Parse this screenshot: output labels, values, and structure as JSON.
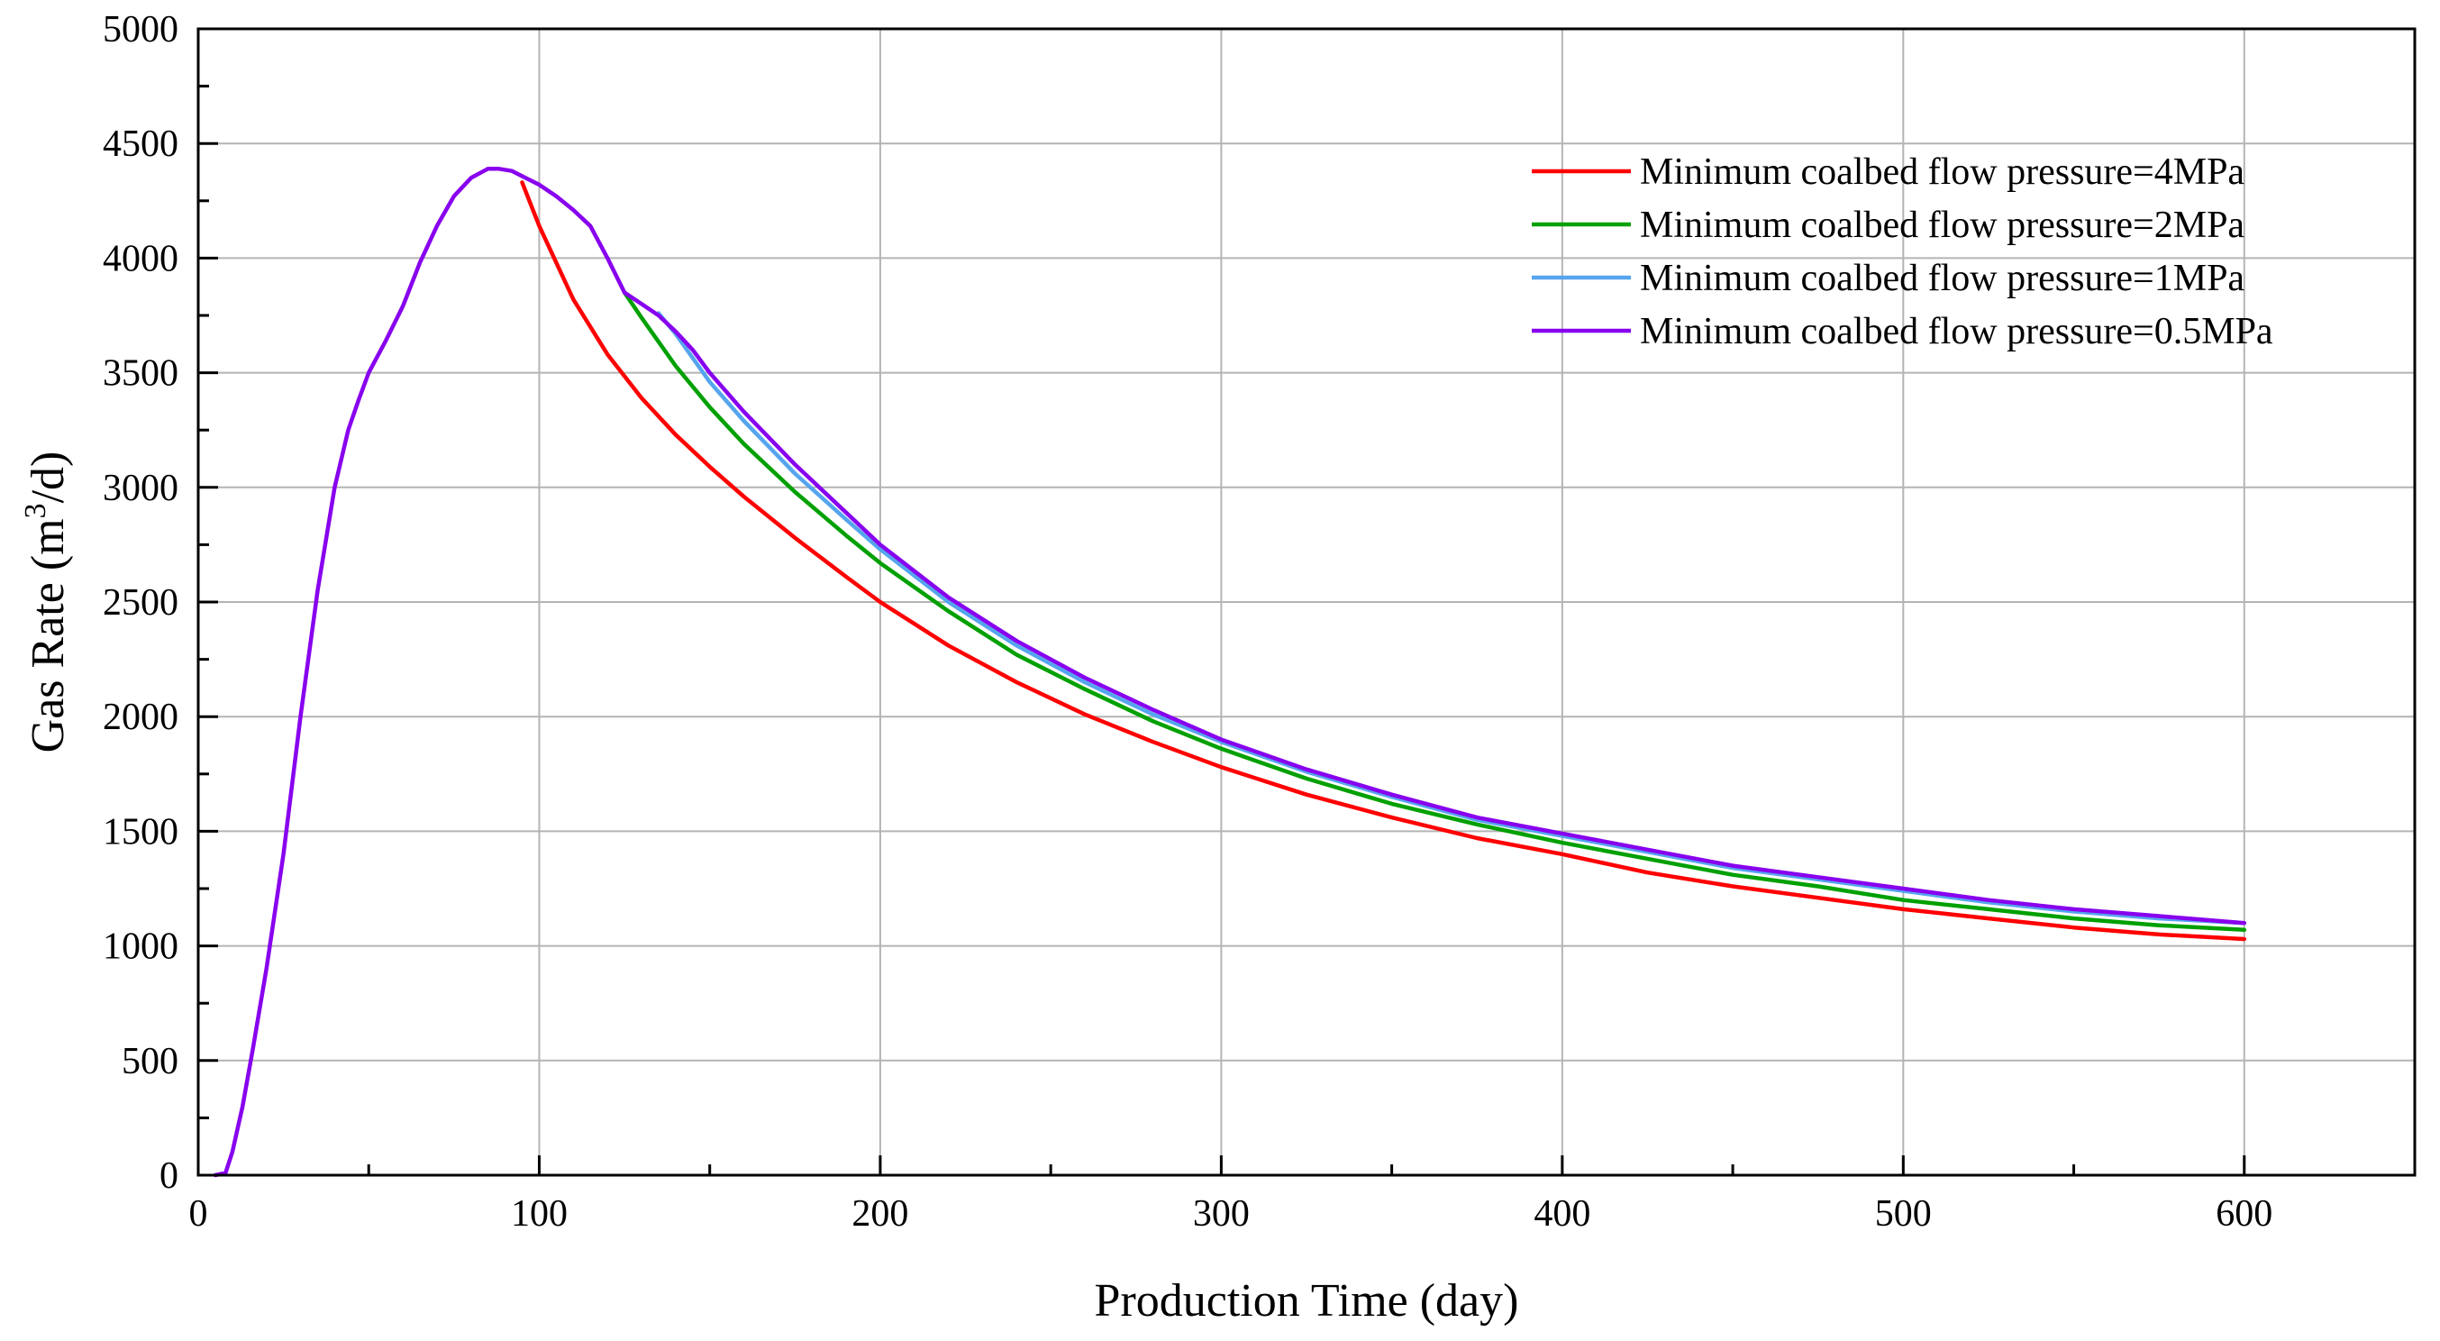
{
  "chart_data": {
    "type": "line",
    "title": "",
    "xlabel": "Production Time (day)",
    "ylabel": {
      "main": "Gas Rate (m",
      "sup": "3",
      "tail": "/d)"
    },
    "xlim": [
      0,
      650
    ],
    "ylim": [
      0,
      5000
    ],
    "xticks": [
      0,
      100,
      200,
      300,
      400,
      500,
      600
    ],
    "yticks": [
      0,
      500,
      1000,
      1500,
      2000,
      2500,
      3000,
      3500,
      4000,
      4500,
      5000
    ],
    "grid": true,
    "legend_position": "top-right",
    "series": [
      {
        "name": "Minimum coalbed flow pressure=4MPa",
        "color": "#ff0000",
        "x": [
          95,
          100,
          110,
          120,
          130,
          140,
          150,
          160,
          175,
          190,
          200,
          220,
          240,
          260,
          280,
          300,
          325,
          350,
          375,
          400,
          425,
          450,
          475,
          500,
          525,
          550,
          575,
          600
        ],
        "y": [
          4330,
          4140,
          3820,
          3580,
          3390,
          3230,
          3090,
          2960,
          2780,
          2610,
          2500,
          2310,
          2150,
          2010,
          1890,
          1780,
          1660,
          1560,
          1470,
          1400,
          1320,
          1260,
          1210,
          1160,
          1120,
          1080,
          1050,
          1030
        ]
      },
      {
        "name": "Minimum coalbed flow pressure=2MPa",
        "color": "#00a000",
        "x": [
          125,
          130,
          140,
          150,
          160,
          175,
          190,
          200,
          220,
          240,
          260,
          280,
          300,
          325,
          350,
          375,
          400,
          425,
          450,
          475,
          500,
          525,
          550,
          575,
          600
        ],
        "y": [
          3850,
          3740,
          3530,
          3350,
          3190,
          2980,
          2790,
          2670,
          2460,
          2270,
          2120,
          1980,
          1860,
          1730,
          1620,
          1530,
          1450,
          1380,
          1310,
          1260,
          1200,
          1160,
          1120,
          1090,
          1070
        ]
      },
      {
        "name": "Minimum coalbed flow pressure=1MPa",
        "color": "#55a5ee",
        "x": [
          135,
          140,
          150,
          160,
          175,
          190,
          200,
          220,
          240,
          260,
          280,
          300,
          325,
          350,
          375,
          400,
          425,
          450,
          475,
          500,
          525,
          550,
          575,
          600
        ],
        "y": [
          3760,
          3670,
          3460,
          3290,
          3060,
          2860,
          2730,
          2500,
          2310,
          2150,
          2010,
          1890,
          1760,
          1650,
          1550,
          1480,
          1410,
          1340,
          1290,
          1240,
          1190,
          1150,
          1120,
          1100
        ]
      },
      {
        "name": "Minimum coalbed flow pressure=0.5MPa",
        "color": "#8800ee",
        "x": [
          5,
          8,
          10,
          13,
          16,
          20,
          25,
          30,
          35,
          40,
          44,
          47,
          50,
          55,
          60,
          65,
          70,
          75,
          80,
          85,
          88,
          92,
          96,
          100,
          105,
          110,
          115,
          120,
          125,
          130,
          135,
          140,
          145,
          150,
          160,
          175,
          190,
          200,
          220,
          240,
          260,
          280,
          300,
          325,
          350,
          375,
          400,
          425,
          450,
          475,
          500,
          525,
          550,
          575,
          600
        ],
        "y": [
          0,
          10,
          100,
          300,
          550,
          900,
          1400,
          2000,
          2550,
          3000,
          3250,
          3380,
          3500,
          3640,
          3790,
          3980,
          4140,
          4270,
          4350,
          4390,
          4390,
          4380,
          4350,
          4320,
          4270,
          4210,
          4140,
          4000,
          3850,
          3800,
          3750,
          3680,
          3600,
          3500,
          3330,
          3100,
          2890,
          2750,
          2520,
          2330,
          2170,
          2030,
          1900,
          1770,
          1660,
          1560,
          1490,
          1420,
          1350,
          1300,
          1250,
          1200,
          1160,
          1130,
          1100
        ]
      }
    ]
  }
}
